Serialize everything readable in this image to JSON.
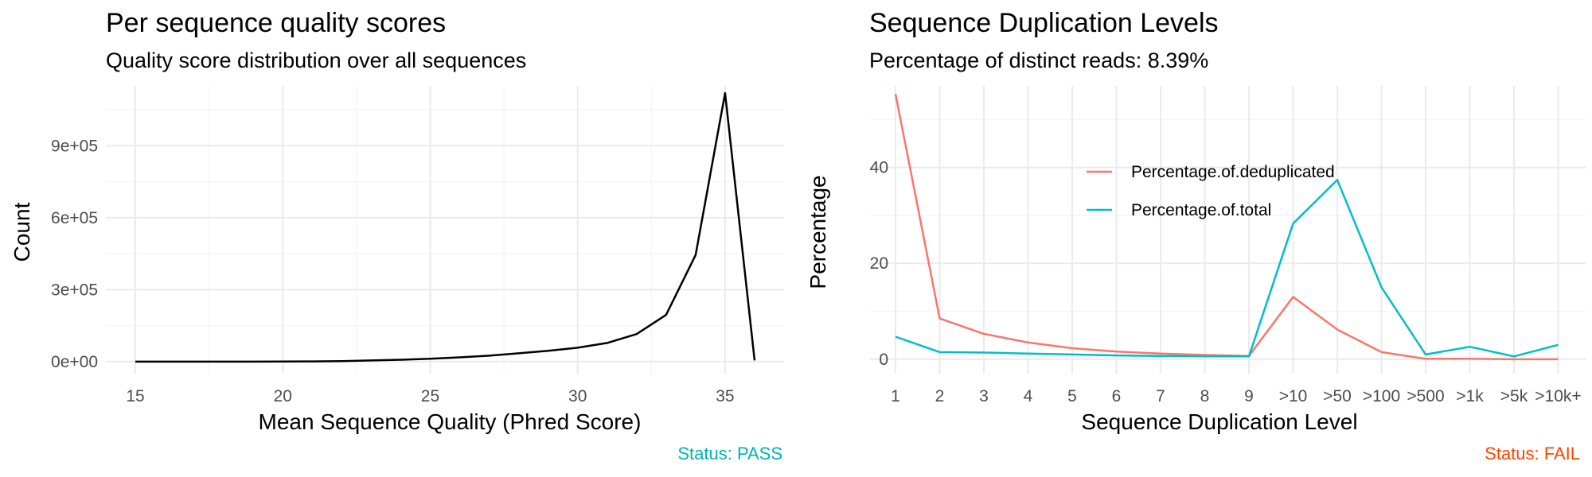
{
  "colors": {
    "series_black": "#000000",
    "dedup": "#F8766D",
    "total": "#00BFC4",
    "status_pass": "#00B3B3",
    "status_fail": "#FF4500"
  },
  "chart_data": [
    {
      "type": "line",
      "title": "Per sequence quality scores",
      "subtitle": "Quality score distribution over all sequences",
      "xlabel": "Mean Sequence Quality (Phred Score)",
      "ylabel": "Count",
      "xlim": [
        14,
        37
      ],
      "ylim": [
        -50000,
        1150000
      ],
      "x_ticks": [
        15,
        20,
        25,
        30,
        35
      ],
      "x_tick_labels": [
        "15",
        "20",
        "25",
        "30",
        "35"
      ],
      "y_ticks": [
        0,
        300000,
        600000,
        900000
      ],
      "y_tick_labels": [
        "0e+00",
        "3e+05",
        "6e+05",
        "9e+05"
      ],
      "grid": true,
      "series": [
        {
          "x": [
            15,
            16,
            17,
            18,
            19,
            20,
            21,
            22,
            23,
            24,
            25,
            26,
            27,
            28,
            29,
            30,
            31,
            32,
            33,
            34,
            35,
            36
          ],
          "values": [
            0,
            0,
            0,
            0,
            200,
            500,
            1000,
            2500,
            5000,
            8000,
            12000,
            18000,
            25000,
            35000,
            45000,
            58000,
            78000,
            115000,
            195000,
            445000,
            1120000,
            5000
          ]
        }
      ],
      "status": "Status: PASS"
    },
    {
      "type": "line",
      "title": "Sequence Duplication Levels",
      "subtitle": "Percentage of distinct reads: 8.39%",
      "xlabel": "Sequence Duplication Level",
      "ylabel": "Percentage",
      "categories": [
        "1",
        "2",
        "3",
        "4",
        "5",
        "6",
        "7",
        "8",
        "9",
        ">10",
        ">50",
        ">100",
        ">500",
        ">1k",
        ">5k",
        ">10k+"
      ],
      "ylim": [
        -3,
        57
      ],
      "y_ticks": [
        0,
        20,
        40
      ],
      "y_tick_labels": [
        "0",
        "20",
        "40"
      ],
      "grid": true,
      "legend_position": "inside-top",
      "series": [
        {
          "name": "Percentage.of.deduplicated",
          "values": [
            55.3,
            8.5,
            5.3,
            3.5,
            2.3,
            1.6,
            1.2,
            0.9,
            0.7,
            13.0,
            6.2,
            1.5,
            0.1,
            0.1,
            0.0,
            0.0
          ]
        },
        {
          "name": "Percentage.of.total",
          "values": [
            4.7,
            1.5,
            1.4,
            1.2,
            1.0,
            0.8,
            0.7,
            0.6,
            0.6,
            28.3,
            37.4,
            15.0,
            1.0,
            2.6,
            0.6,
            3.0
          ]
        }
      ],
      "status": "Status: FAIL"
    }
  ]
}
